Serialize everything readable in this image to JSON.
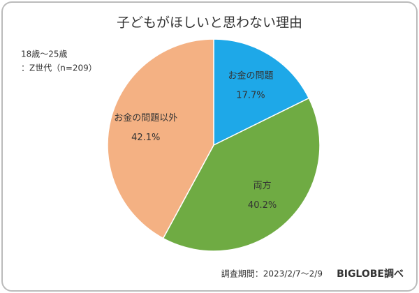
{
  "chart_data": {
    "type": "pie",
    "title": "子どもがほしいと思わない理由",
    "annotations": [
      "18歳～25歳",
      "：Z世代（n=209）"
    ],
    "categories": [
      "お金の問題",
      "両方",
      "お金の問題以外"
    ],
    "values": [
      17.7,
      40.2,
      42.1
    ],
    "value_labels": [
      "17.7%",
      "40.2%",
      "42.1%"
    ],
    "colors": [
      "#1ea8e8",
      "#6fab43",
      "#f4b183"
    ],
    "footer": "調査期間：2023/2/7～2/9",
    "source": "BIGLOBE調べ"
  }
}
